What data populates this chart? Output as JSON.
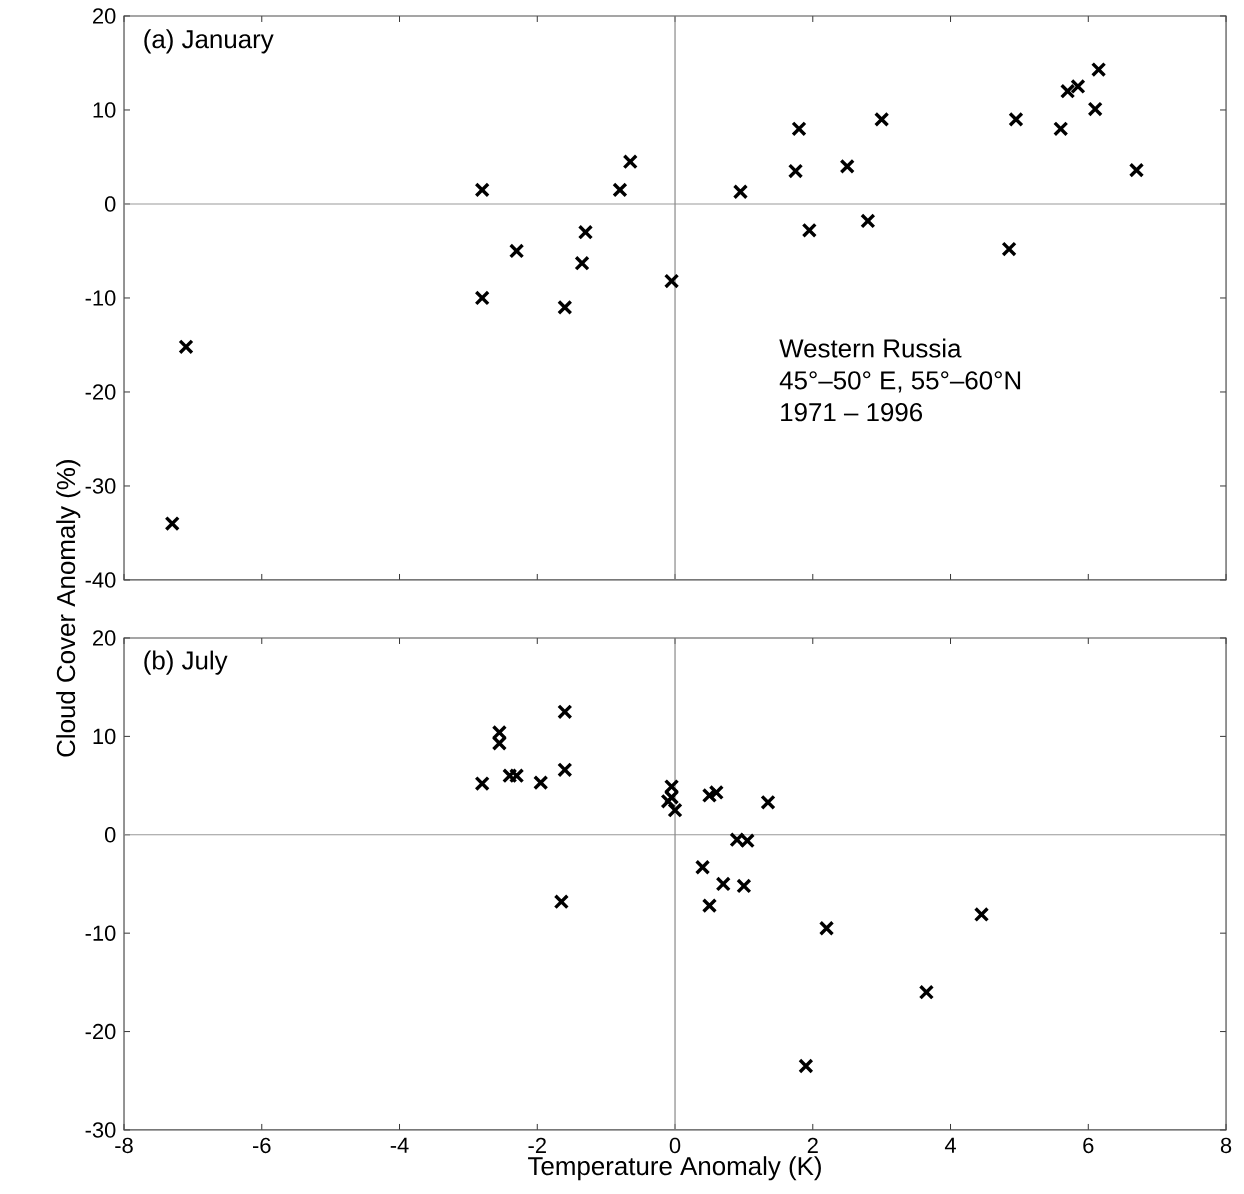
{
  "chart_data": [
    {
      "type": "scatter",
      "title": "(a)  January",
      "ylabel": "Cloud Cover Anomaly (%)",
      "marker": "cross",
      "grid": false,
      "tick_labels": "y",
      "annotations": [
        "Western Russia",
        "45°–50° E, 55°–60°N",
        "1971 – 1996"
      ],
      "xlim": [
        -8,
        8
      ],
      "ylim": [
        -40,
        20
      ],
      "xticks": [
        -8,
        -6,
        -4,
        -2,
        0,
        2,
        4,
        6,
        8
      ],
      "yticks": [
        -40,
        -30,
        -20,
        -10,
        0,
        10,
        20
      ],
      "ref_lines": [
        {
          "axis": "y",
          "value": 0,
          "color": "#999999"
        },
        {
          "axis": "x",
          "value": 0,
          "color": "#888888"
        }
      ],
      "series": [
        {
          "color": "#000000",
          "x": [
            -7.3,
            -7.1,
            -2.8,
            -2.8,
            -2.3,
            -1.6,
            -1.3,
            -1.35,
            -0.8,
            -0.65,
            -0.05,
            0.95,
            1.8,
            1.75,
            1.95,
            2.5,
            2.8,
            3.0,
            4.85,
            4.95,
            5.6,
            5.7,
            5.85,
            6.15,
            6.1,
            6.7
          ],
          "values": [
            -34,
            -15.2,
            1.5,
            -10,
            -5,
            -11,
            -3,
            -6.3,
            1.5,
            4.5,
            -8.2,
            1.3,
            8,
            3.5,
            -2.8,
            4,
            -1.8,
            9,
            -4.8,
            9,
            8,
            12,
            12.5,
            14.3,
            10.1,
            3.6
          ]
        }
      ]
    },
    {
      "type": "scatter",
      "title": "(b)  July",
      "xlabel": "Temperature Anomaly (K)",
      "marker": "cross",
      "grid": false,
      "xlim": [
        -8,
        8
      ],
      "ylim": [
        -30,
        20
      ],
      "xticks": [
        -8,
        -6,
        -4,
        -2,
        0,
        2,
        4,
        6,
        8
      ],
      "yticks": [
        -30,
        -20,
        -10,
        0,
        10,
        20
      ],
      "ref_lines": [
        {
          "axis": "y",
          "value": 0,
          "color": "#999999"
        },
        {
          "axis": "x",
          "value": 0,
          "color": "#888888"
        }
      ],
      "series": [
        {
          "color": "#000000",
          "x": [
            -2.8,
            -2.55,
            -2.55,
            -2.4,
            -2.3,
            -1.95,
            -1.6,
            -1.6,
            -1.65,
            -0.1,
            -0.05,
            0.0,
            -0.05,
            0.4,
            0.5,
            0.6,
            0.5,
            0.7,
            0.9,
            1.05,
            1.0,
            1.35,
            2.2,
            1.9,
            3.65,
            4.45
          ],
          "values": [
            5.2,
            10.4,
            9.3,
            6,
            6,
            5.3,
            12.5,
            6.6,
            -6.8,
            3.4,
            4.9,
            2.5,
            3.8,
            -3.3,
            4,
            4.3,
            -7.2,
            -5,
            -0.5,
            -0.6,
            -5.2,
            3.3,
            -9.5,
            -23.5,
            -16,
            -8.1
          ]
        }
      ]
    }
  ]
}
